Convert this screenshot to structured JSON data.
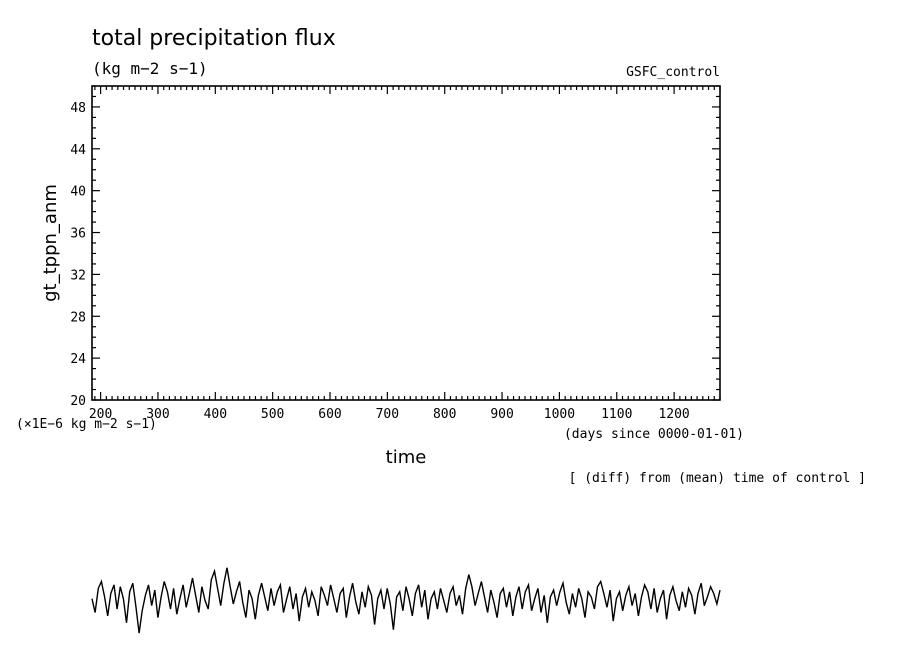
{
  "chart_data": {
    "type": "line",
    "title": "total precipitation flux",
    "units": "(kg m−2 s−1)",
    "run_label": "GSFC_control",
    "xlabel": "time",
    "ylabel": "gt_tppn_anm",
    "x_units_note": "(days since 0000-01-01)",
    "y_scale_note": "(×1E−6 kg m−2 s−1)",
    "note": "[ (diff) from (mean) time of control ]",
    "xlim": [
      185,
      1280
    ],
    "ylim": [
      20,
      50
    ],
    "x_ticks": [
      200,
      300,
      400,
      500,
      600,
      700,
      800,
      900,
      1000,
      1100,
      1200
    ],
    "y_ticks": [
      20,
      24,
      28,
      32,
      36,
      40,
      44,
      48
    ],
    "grid": false,
    "series": [
      {
        "x_range": [
          185,
          1280
        ],
        "y_range": [
          -2.2,
          2.1
        ],
        "values": [
          0.2,
          -0.6,
          0.8,
          1.2,
          0.3,
          -0.8,
          0.5,
          1.0,
          -0.4,
          0.9,
          0.2,
          -1.2,
          0.6,
          1.1,
          -0.3,
          -1.8,
          -0.5,
          0.4,
          1.0,
          -0.2,
          0.7,
          -0.9,
          0.3,
          1.2,
          0.6,
          -0.4,
          0.8,
          -0.7,
          0.2,
          1.0,
          -0.3,
          0.5,
          1.4,
          0.4,
          -0.6,
          0.9,
          0.1,
          -0.4,
          1.3,
          1.8,
          0.8,
          -0.2,
          1.1,
          2.0,
          0.9,
          -0.1,
          0.6,
          1.2,
          0.0,
          -0.9,
          0.7,
          0.2,
          -1.0,
          0.4,
          1.1,
          0.3,
          -0.5,
          0.8,
          -0.2,
          0.6,
          1.0,
          -0.6,
          0.2,
          0.9,
          -0.4,
          0.5,
          -1.1,
          0.3,
          0.8,
          -0.3,
          0.6,
          0.1,
          -0.8,
          0.9,
          0.4,
          -0.2,
          1.0,
          0.2,
          -0.6,
          0.5,
          0.8,
          -0.9,
          0.3,
          1.1,
          0.0,
          -0.7,
          0.6,
          -0.3,
          0.9,
          0.4,
          -1.3,
          0.2,
          0.7,
          -0.4,
          0.8,
          -0.1,
          -1.6,
          0.3,
          0.6,
          -0.5,
          0.9,
          0.2,
          -0.8,
          0.5,
          1.0,
          -0.3,
          0.7,
          -1.0,
          0.2,
          0.6,
          -0.4,
          0.8,
          0.1,
          -0.6,
          0.5,
          0.9,
          -0.2,
          0.4,
          -0.7,
          0.8,
          1.6,
          0.9,
          -0.2,
          0.5,
          1.2,
          0.3,
          -0.6,
          0.7,
          0.0,
          -0.9,
          0.5,
          0.8,
          -0.3,
          0.6,
          -0.8,
          0.3,
          0.9,
          -0.4,
          0.6,
          1.0,
          -0.5,
          0.2,
          0.8,
          -0.6,
          0.4,
          -1.2,
          0.3,
          0.7,
          -0.2,
          0.6,
          1.1,
          0.0,
          -0.7,
          0.5,
          -0.3,
          0.8,
          0.2,
          -0.9,
          0.6,
          0.3,
          -0.4,
          0.9,
          1.2,
          0.5,
          -0.3,
          0.7,
          -1.1,
          0.2,
          0.6,
          -0.5,
          0.4,
          0.9,
          -0.2,
          0.5,
          -0.8,
          0.3,
          1.0,
          0.6,
          -0.4,
          0.8,
          -0.6,
          0.2,
          0.7,
          -1.0,
          0.4,
          0.9,
          0.1,
          -0.5,
          0.6,
          -0.3,
          0.8,
          0.4,
          -0.7,
          0.5,
          1.1,
          -0.2,
          0.3,
          0.9,
          0.5,
          -0.1,
          0.7
        ]
      }
    ]
  }
}
